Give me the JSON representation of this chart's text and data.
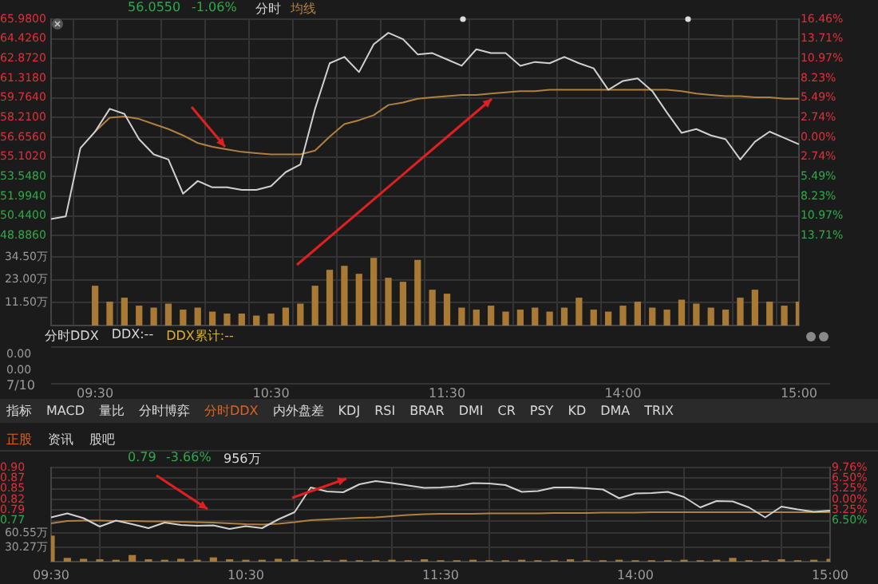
{
  "chart_data": [
    {
      "type": "line",
      "annotations": [
        "56.0550",
        "-1.06%",
        "7/10"
      ],
      "legend": "top left",
      "grid": true,
      "categories": [
        null,
        null,
        null,
        "09:30",
        null,
        null,
        null,
        null,
        null,
        null,
        null,
        null,
        null,
        null,
        null,
        "10:30",
        null,
        null,
        null,
        null,
        null,
        null,
        null,
        null,
        null,
        null,
        null,
        "11:30",
        null,
        null,
        null,
        null,
        null,
        null,
        null,
        null,
        null,
        null,
        null,
        "14:00",
        null,
        null,
        null,
        null,
        null,
        null,
        null,
        null,
        null,
        null,
        null,
        "15:00"
      ],
      "ylim": [
        41.79,
        65.98
      ],
      "yticks": [
        {
          "value": 65.98,
          "label": "65.9800"
        },
        {
          "value": 64.426,
          "label": "64.4260"
        },
        {
          "value": 62.872,
          "label": "62.8720"
        },
        {
          "value": 61.318,
          "label": "61.3180"
        },
        {
          "value": 59.764,
          "label": "59.7640"
        },
        {
          "value": 58.21,
          "label": "58.2100"
        },
        {
          "value": 56.656,
          "label": "56.6560"
        },
        {
          "value": 55.102,
          "label": "55.1020"
        },
        {
          "value": 53.548,
          "label": "53.5480"
        },
        {
          "value": 51.994,
          "label": "51.9940"
        },
        {
          "value": 50.44,
          "label": "50.4400"
        },
        {
          "value": 48.886,
          "label": "48.8860"
        }
      ],
      "y2lim": [
        -26.25,
        16.46
      ],
      "y2ticks": [
        {
          "value": 16.46,
          "label": "16.46%"
        },
        {
          "value": 13.71,
          "label": "13.71%"
        },
        {
          "value": 10.97,
          "label": "10.97%"
        },
        {
          "value": 8.23,
          "label": "8.23%"
        },
        {
          "value": 5.49,
          "label": "5.49%"
        },
        {
          "value": 2.74,
          "label": "2.74%"
        },
        {
          "value": 0,
          "label": "0.00%"
        },
        {
          "value": -2.74,
          "label": "2.74%"
        },
        {
          "value": -5.49,
          "label": "5.49%"
        },
        {
          "value": -8.23,
          "label": "8.23%"
        },
        {
          "value": -10.97,
          "label": "10.97%"
        },
        {
          "value": -13.71,
          "label": "13.71%"
        }
      ],
      "y3lim": [
        0,
        154
      ],
      "y3ticks": [
        {
          "value": 34.5,
          "label": "34.50万"
        },
        {
          "value": 23,
          "label": "23.00万"
        },
        {
          "value": 11.5,
          "label": "11.50万"
        }
      ],
      "series": [
        {
          "name": "分时",
          "type": "line",
          "color": "#d0d0d0",
          "values": [
            50.2,
            50.4,
            55.8,
            57.1,
            58.9,
            58.5,
            56.5,
            55.3,
            54.9,
            52.2,
            53.2,
            52.7,
            52.7,
            52.5,
            52.5,
            52.8,
            53.9,
            54.5,
            58.9,
            62.5,
            63.0,
            61.8,
            64.0,
            64.9,
            64.4,
            63.2,
            63.3,
            62.8,
            62.3,
            63.6,
            63.3,
            63.3,
            62.3,
            62.6,
            62.5,
            63.0,
            62.5,
            62.1,
            60.4,
            61.1,
            61.3,
            60.3,
            58.6,
            57.0,
            57.3,
            56.8,
            56.5,
            54.9,
            56.3,
            57.1,
            56.6,
            56.1
          ]
        },
        {
          "name": "均线",
          "type": "line",
          "color": "#b08040",
          "values": [
            null,
            null,
            null,
            57.1,
            58.2,
            58.3,
            58.1,
            57.7,
            57.3,
            56.8,
            56.2,
            55.9,
            55.7,
            55.5,
            55.4,
            55.3,
            55.3,
            55.3,
            55.6,
            56.7,
            57.7,
            58.0,
            58.4,
            59.2,
            59.4,
            59.7,
            59.8,
            59.9,
            60.0,
            60.0,
            60.1,
            60.2,
            60.3,
            60.3,
            60.4,
            60.4,
            60.4,
            60.4,
            60.4,
            60.4,
            60.4,
            60.4,
            60.4,
            60.3,
            60.1,
            60.0,
            59.9,
            59.9,
            59.8,
            59.8,
            59.7,
            59.7
          ]
        },
        {
          "type": "bar",
          "axis": "y3",
          "color": "#a87a35",
          "values": [
            null,
            null,
            null,
            20,
            12,
            14,
            10,
            9,
            11,
            8,
            9,
            7,
            6,
            6,
            5,
            6,
            9,
            11,
            20,
            28,
            30,
            26,
            34,
            24,
            22,
            33,
            18,
            16,
            9,
            8,
            10,
            7,
            8,
            9,
            7,
            9,
            14,
            8,
            7,
            10,
            12,
            9,
            8,
            13,
            11,
            9,
            8,
            14,
            18,
            12,
            10,
            12
          ]
        }
      ]
    },
    {
      "type": "other",
      "annotations": [
        "分时DDX",
        "DDX:--",
        "DDX累计:--",
        "0.00",
        "0.00"
      ]
    },
    {
      "type": "other",
      "annotations": [
        "指标",
        "MACD",
        "量比",
        "分时博弈",
        "分时DDX",
        "内外盘差",
        "KDJ",
        "RSI",
        "BRAR",
        "DMI",
        "CR",
        "PSY",
        "KD",
        "DMA",
        "TRIX",
        "正股",
        "资讯",
        "股吧"
      ]
    },
    {
      "type": "line",
      "annotations": [
        "0.79",
        "-3.66%",
        "956万"
      ],
      "grid": true,
      "categories": [
        "09:30",
        null,
        null,
        null,
        null,
        null,
        null,
        null,
        null,
        null,
        null,
        null,
        "10:30",
        null,
        null,
        null,
        null,
        null,
        null,
        null,
        null,
        null,
        null,
        null,
        "11:30",
        null,
        null,
        null,
        null,
        null,
        null,
        null,
        null,
        null,
        null,
        null,
        "14:00",
        null,
        null,
        null,
        null,
        null,
        null,
        null,
        null,
        null,
        null,
        null,
        "15:00"
      ],
      "ylim": [
        0.664,
        0.9
      ],
      "yticks": [
        {
          "value": 0.9,
          "label": "0.90"
        },
        {
          "value": 0.8733,
          "label": "0.87"
        },
        {
          "value": 0.8467,
          "label": "0.85"
        },
        {
          "value": 0.82,
          "label": "0.82"
        },
        {
          "value": 0.7933,
          "label": "0.79"
        },
        {
          "value": 0.7667,
          "label": "0.77"
        }
      ],
      "y2lim": [
        -19.03,
        9.76
      ],
      "y2ticks": [
        {
          "value": 9.76,
          "label": "9.76%"
        },
        {
          "value": 6.5,
          "label": "6.50%"
        },
        {
          "value": 3.25,
          "label": "3.25%"
        },
        {
          "value": 0,
          "label": "0.00%"
        },
        {
          "value": -3.25,
          "label": "3.25%"
        },
        {
          "value": -6.5,
          "label": "6.50%"
        }
      ],
      "y3lim": [
        0,
        198.5
      ],
      "y3ticks": [
        {
          "value": 60.55,
          "label": "60.55万"
        },
        {
          "value": 30.27,
          "label": "30.27万"
        }
      ],
      "series": [
        {
          "type": "line",
          "color": "#d0d0d0",
          "values": [
            0.775,
            0.785,
            0.773,
            0.752,
            0.767,
            0.758,
            0.748,
            0.762,
            0.756,
            0.754,
            0.755,
            0.746,
            0.753,
            0.748,
            0.77,
            0.788,
            0.85,
            0.84,
            0.838,
            0.858,
            0.866,
            0.861,
            0.855,
            0.849,
            0.85,
            0.853,
            0.861,
            0.86,
            0.856,
            0.839,
            0.841,
            0.85,
            0.85,
            0.848,
            0.845,
            0.823,
            0.835,
            0.836,
            0.839,
            0.826,
            0.8,
            0.816,
            0.815,
            0.8,
            0.775,
            0.802,
            0.795,
            0.789,
            0.792
          ]
        },
        {
          "type": "line",
          "color": "#b08040",
          "values": [
            0.76,
            0.766,
            0.767,
            0.767,
            0.766,
            0.766,
            0.765,
            0.765,
            0.764,
            0.763,
            0.762,
            0.76,
            0.758,
            0.757,
            0.759,
            0.763,
            0.768,
            0.77,
            0.772,
            0.774,
            0.775,
            0.778,
            0.781,
            0.783,
            0.784,
            0.784,
            0.784,
            0.785,
            0.785,
            0.785,
            0.785,
            0.786,
            0.786,
            0.786,
            0.787,
            0.787,
            0.787,
            0.788,
            0.788,
            0.788,
            0.788,
            0.788,
            0.788,
            0.788,
            0.788,
            0.788,
            0.788,
            0.788,
            0.788
          ]
        },
        {
          "type": "bar",
          "axis": "y3",
          "color": "#a87a35",
          "values": [
            55,
            8,
            6,
            5,
            4,
            14,
            5,
            4,
            6,
            4,
            9,
            5,
            4,
            4,
            6,
            5,
            3,
            3,
            4,
            3,
            3,
            4,
            3,
            5,
            3,
            3,
            4,
            3,
            3,
            4,
            3,
            3,
            5,
            3,
            3,
            4,
            3,
            3,
            3,
            4,
            3,
            4,
            8,
            3,
            3,
            5,
            3,
            4,
            6
          ]
        }
      ]
    }
  ]
}
